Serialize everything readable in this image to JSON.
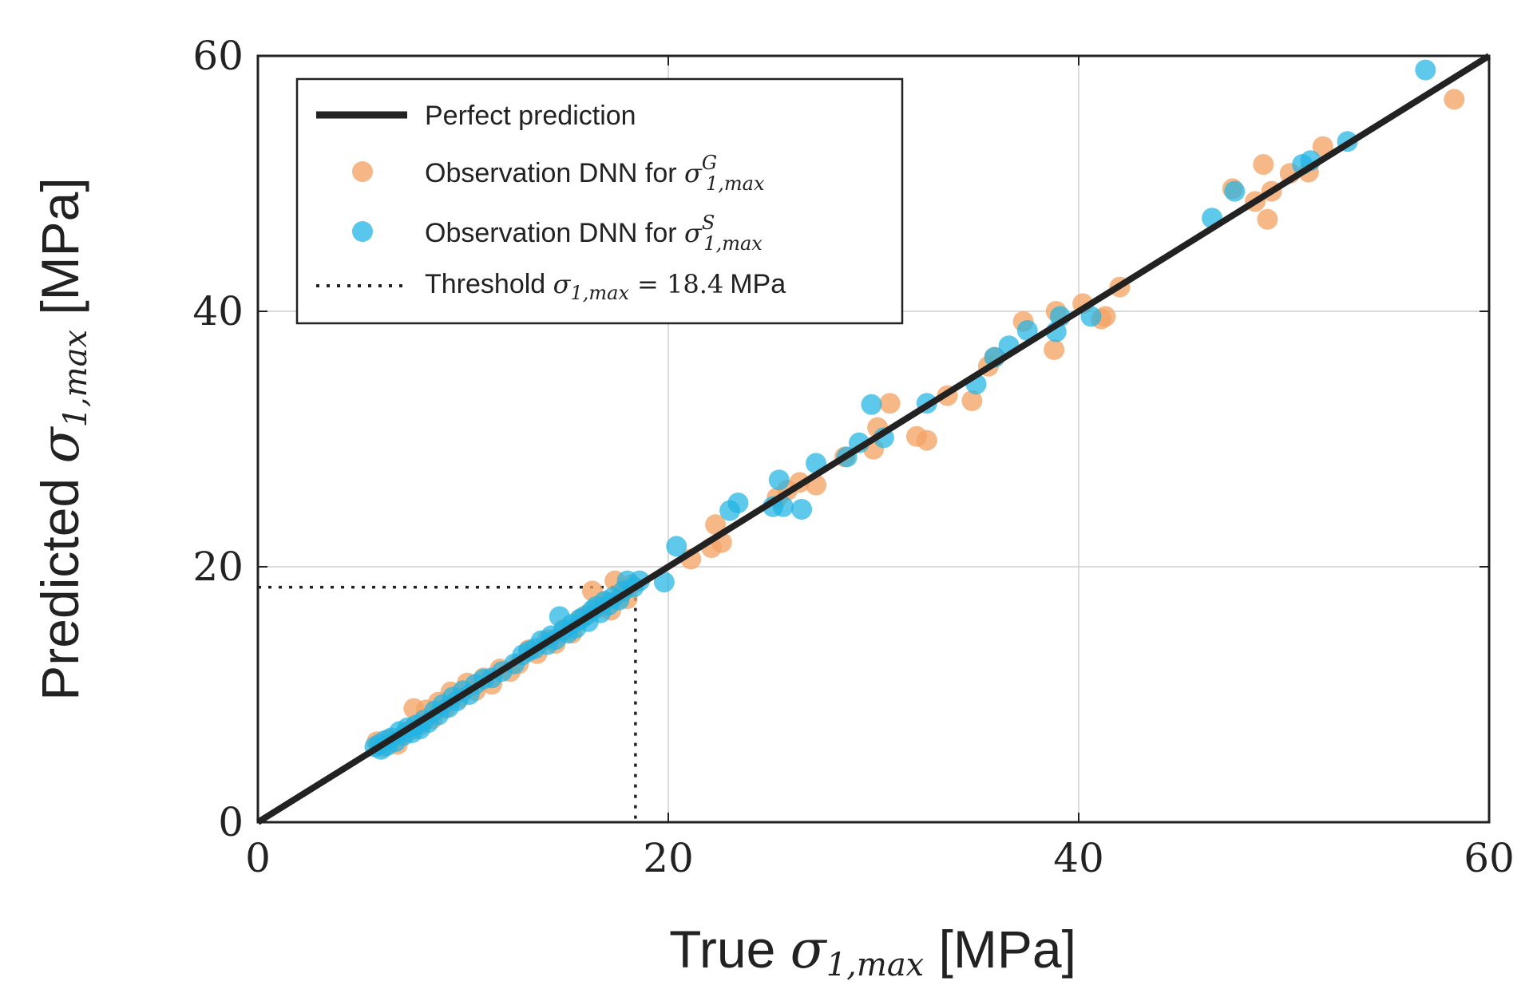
{
  "colors": {
    "orange": "#F5A466",
    "blue": "#21B4E5",
    "line": "#222222",
    "grid": "#cfcfcf",
    "frame": "#222222"
  },
  "chart_data": {
    "type": "scatter",
    "title": "",
    "xlabel": {
      "prefix": "True ",
      "sym": "σ",
      "sub": "1,max",
      "suffix": " [MPa]"
    },
    "ylabel": {
      "prefix": "Predicted ",
      "sym": "σ",
      "sub": "1,max",
      "suffix": " [MPa]"
    },
    "xlim": [
      0,
      60
    ],
    "ylim": [
      0,
      60
    ],
    "xticks": [
      0,
      20,
      40,
      60
    ],
    "yticks": [
      0,
      20,
      40,
      60
    ],
    "xtick_labels": [
      "0",
      "20",
      "40",
      "60"
    ],
    "ytick_labels": [
      "0",
      "20",
      "40",
      "60"
    ],
    "grid": true,
    "threshold": 18.4,
    "legend_position": "top-left",
    "legend": {
      "perfect": "Perfect prediction",
      "obs_prefix": "Observation DNN for ",
      "sigma": "σ",
      "sub": "1,max",
      "sup_g": "G",
      "sup_s": "S",
      "threshold_prefix": "Threshold ",
      "threshold_eq": "= 18.4",
      "threshold_unit": "MPa"
    },
    "series": [
      {
        "name": "Perfect prediction",
        "kind": "line",
        "x": [
          0,
          60
        ],
        "y": [
          0,
          60
        ]
      },
      {
        "name": "Observation DNN for σG1,max",
        "kind": "scatter",
        "color": "#F5A466",
        "points": [
          [
            5.8,
            6.3
          ],
          [
            6.1,
            5.9
          ],
          [
            6.4,
            6.5
          ],
          [
            6.8,
            6.1
          ],
          [
            7.2,
            7.0
          ],
          [
            7.5,
            7.3
          ],
          [
            7.6,
            8.9
          ],
          [
            7.9,
            7.6
          ],
          [
            8.2,
            8.8
          ],
          [
            8.5,
            8.1
          ],
          [
            8.8,
            9.4
          ],
          [
            9.1,
            8.9
          ],
          [
            9.4,
            10.2
          ],
          [
            9.8,
            9.7
          ],
          [
            10.2,
            10.9
          ],
          [
            10.6,
            10.3
          ],
          [
            11.0,
            11.3
          ],
          [
            11.4,
            10.8
          ],
          [
            11.8,
            12.0
          ],
          [
            12.3,
            11.8
          ],
          [
            12.7,
            12.4
          ],
          [
            13.2,
            13.5
          ],
          [
            13.6,
            13.2
          ],
          [
            14.1,
            14.3
          ],
          [
            14.5,
            14.0
          ],
          [
            14.9,
            15.1
          ],
          [
            15.3,
            14.8
          ],
          [
            15.7,
            15.9
          ],
          [
            16.1,
            16.3
          ],
          [
            16.3,
            18.1
          ],
          [
            16.6,
            16.8
          ],
          [
            16.9,
            17.3
          ],
          [
            17.2,
            16.6
          ],
          [
            17.4,
            18.9
          ],
          [
            17.7,
            17.9
          ],
          [
            18.0,
            17.5
          ],
          [
            18.2,
            18.6
          ],
          [
            21.1,
            20.6
          ],
          [
            22.1,
            21.5
          ],
          [
            22.3,
            23.3
          ],
          [
            22.6,
            21.9
          ],
          [
            25.3,
            25.4
          ],
          [
            25.8,
            26.0
          ],
          [
            26.4,
            26.6
          ],
          [
            27.2,
            26.4
          ],
          [
            28.6,
            28.6
          ],
          [
            30.0,
            29.2
          ],
          [
            30.2,
            30.9
          ],
          [
            30.8,
            32.8
          ],
          [
            32.1,
            30.2
          ],
          [
            32.6,
            29.9
          ],
          [
            33.6,
            33.4
          ],
          [
            34.8,
            33.0
          ],
          [
            35.6,
            35.7
          ],
          [
            35.9,
            36.4
          ],
          [
            37.3,
            39.2
          ],
          [
            38.8,
            37.0
          ],
          [
            38.9,
            40.0
          ],
          [
            40.2,
            40.6
          ],
          [
            41.1,
            39.4
          ],
          [
            41.3,
            39.6
          ],
          [
            42.0,
            41.9
          ],
          [
            47.5,
            49.6
          ],
          [
            48.6,
            48.6
          ],
          [
            49.0,
            51.5
          ],
          [
            49.2,
            47.2
          ],
          [
            49.4,
            49.4
          ],
          [
            50.3,
            50.8
          ],
          [
            51.2,
            50.9
          ],
          [
            51.9,
            52.9
          ],
          [
            58.3,
            56.6
          ]
        ]
      },
      {
        "name": "Observation DNN for σS1,max",
        "kind": "scatter",
        "color": "#21B4E5",
        "points": [
          [
            5.7,
            5.9
          ],
          [
            5.9,
            6.1
          ],
          [
            6.0,
            5.7
          ],
          [
            6.2,
            6.4
          ],
          [
            6.3,
            6.0
          ],
          [
            6.5,
            6.6
          ],
          [
            6.7,
            6.3
          ],
          [
            6.9,
            7.1
          ],
          [
            7.1,
            6.8
          ],
          [
            7.3,
            7.4
          ],
          [
            7.5,
            7.0
          ],
          [
            7.7,
            7.6
          ],
          [
            7.9,
            7.3
          ],
          [
            8.1,
            8.0
          ],
          [
            8.3,
            7.8
          ],
          [
            8.6,
            8.7
          ],
          [
            8.8,
            8.4
          ],
          [
            9.0,
            9.2
          ],
          [
            9.3,
            9.0
          ],
          [
            9.5,
            9.8
          ],
          [
            9.7,
            9.5
          ],
          [
            10.0,
            10.3
          ],
          [
            10.3,
            10.0
          ],
          [
            10.6,
            10.8
          ],
          [
            11.0,
            11.2
          ],
          [
            11.4,
            11.3
          ],
          [
            11.9,
            11.8
          ],
          [
            12.5,
            12.4
          ],
          [
            12.9,
            13.1
          ],
          [
            13.2,
            13.4
          ],
          [
            13.5,
            13.6
          ],
          [
            13.8,
            14.2
          ],
          [
            14.1,
            13.9
          ],
          [
            14.3,
            14.6
          ],
          [
            14.5,
            14.3
          ],
          [
            14.7,
            16.1
          ],
          [
            14.9,
            15.0
          ],
          [
            15.1,
            14.8
          ],
          [
            15.3,
            15.5
          ],
          [
            15.5,
            15.2
          ],
          [
            15.7,
            15.9
          ],
          [
            15.9,
            16.1
          ],
          [
            16.1,
            15.7
          ],
          [
            16.3,
            16.6
          ],
          [
            16.5,
            16.9
          ],
          [
            16.7,
            16.4
          ],
          [
            16.9,
            17.3
          ],
          [
            17.1,
            17.0
          ],
          [
            17.3,
            17.6
          ],
          [
            17.6,
            17.4
          ],
          [
            17.8,
            18.1
          ],
          [
            18.0,
            18.9
          ],
          [
            18.3,
            18.4
          ],
          [
            18.6,
            18.9
          ],
          [
            19.8,
            18.8
          ],
          [
            20.4,
            21.6
          ],
          [
            23.0,
            24.4
          ],
          [
            23.4,
            25.0
          ],
          [
            25.1,
            24.7
          ],
          [
            25.4,
            26.8
          ],
          [
            25.6,
            24.7
          ],
          [
            26.5,
            24.5
          ],
          [
            27.2,
            28.1
          ],
          [
            28.7,
            28.6
          ],
          [
            29.3,
            29.7
          ],
          [
            29.9,
            32.7
          ],
          [
            30.5,
            30.1
          ],
          [
            32.6,
            32.8
          ],
          [
            35.0,
            34.3
          ],
          [
            35.9,
            36.4
          ],
          [
            36.6,
            37.3
          ],
          [
            37.5,
            38.5
          ],
          [
            38.9,
            38.4
          ],
          [
            39.1,
            39.6
          ],
          [
            40.6,
            39.6
          ],
          [
            46.5,
            47.3
          ],
          [
            47.6,
            49.4
          ],
          [
            50.9,
            51.5
          ],
          [
            51.3,
            51.8
          ],
          [
            53.1,
            53.3
          ],
          [
            56.9,
            58.9
          ]
        ]
      }
    ]
  }
}
